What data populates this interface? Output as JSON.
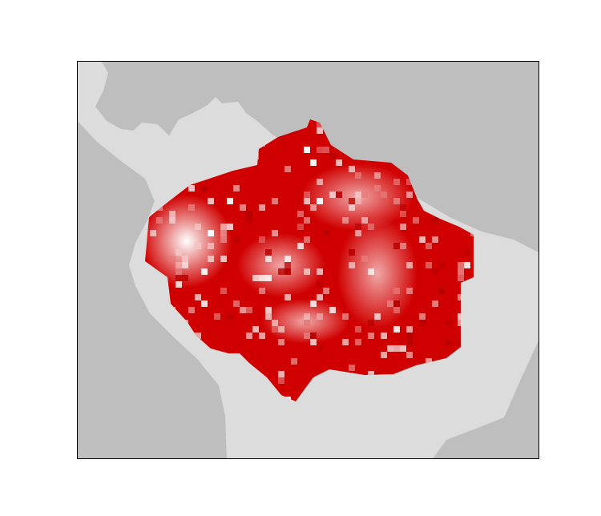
{
  "map": {
    "region": "Amazon basin",
    "ocean_color": "#bebebe",
    "land_color": "#dcdcdc",
    "frame_color": "#000000",
    "raster": {
      "type": "heatmap",
      "palette": [
        "#ffffff",
        "#d00000"
      ],
      "high_color": "#d00000",
      "low_color": "#ffffff"
    }
  }
}
